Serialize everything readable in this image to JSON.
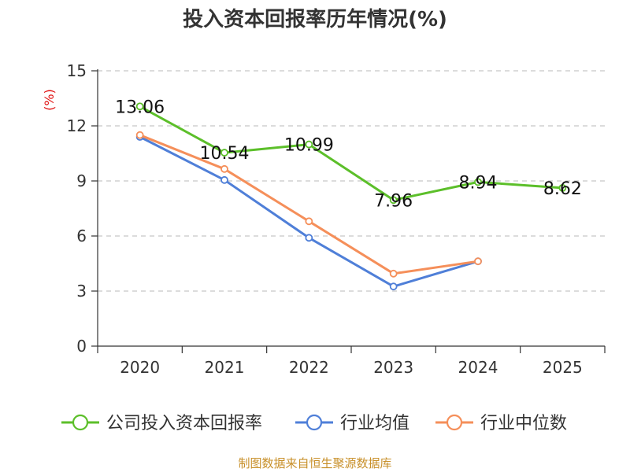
{
  "chart_data": {
    "type": "line",
    "title": "投入资本回报率历年情况(%)",
    "ylabel": "(%)",
    "xlabel": "",
    "ylim": [
      0,
      15
    ],
    "yticks": [
      0,
      3,
      6,
      9,
      12,
      15
    ],
    "categories": [
      "2020",
      "2021",
      "2022",
      "2023",
      "2024",
      "2025"
    ],
    "grid": true,
    "legend_position": "bottom",
    "series": [
      {
        "name": "公司投入资本回报率",
        "color": "#5cbf2a",
        "values": [
          13.06,
          10.54,
          10.99,
          7.96,
          8.94,
          8.62
        ],
        "labels": [
          "13.06",
          "10.54",
          "10.99",
          "7.96",
          "8.94",
          "8.62"
        ]
      },
      {
        "name": "行业均值",
        "color": "#4f7fd8",
        "values": [
          11.4,
          9.05,
          5.9,
          3.25,
          4.62,
          null
        ]
      },
      {
        "name": "行业中位数",
        "color": "#f58f5a",
        "values": [
          11.5,
          9.65,
          6.8,
          3.95,
          4.62,
          null
        ]
      }
    ],
    "source": "制图数据来自恒生聚源数据库"
  }
}
